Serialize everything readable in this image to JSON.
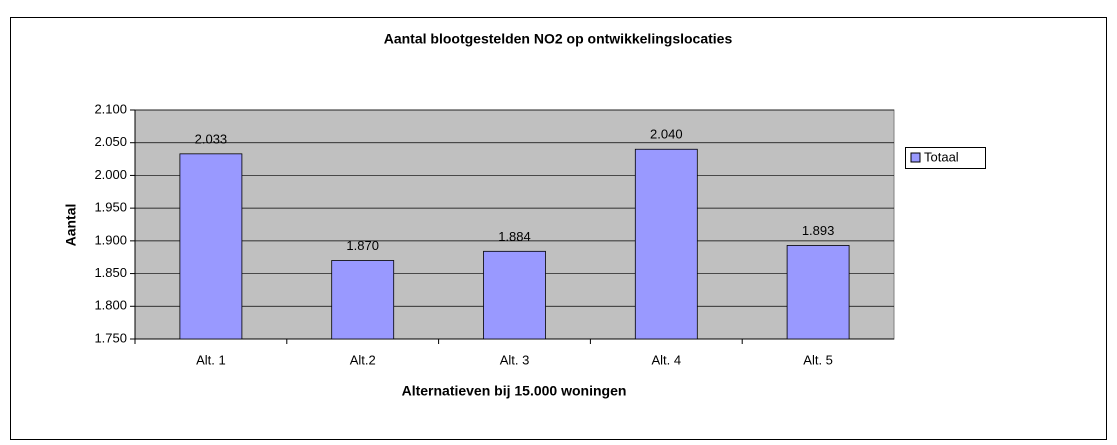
{
  "chart_data": {
    "type": "bar",
    "title": "Aantal blootgestelden NO2 op ontwikkelingslocaties",
    "x_label": "Alternatieven bij 15.000 woningen",
    "y_label": "Aantal",
    "categories": [
      "Alt. 1",
      "Alt.2",
      "Alt. 3",
      "Alt. 4",
      "Alt. 5"
    ],
    "series": [
      {
        "name": "Totaal",
        "color": "#9999ff",
        "values": [
          2033,
          1870,
          1884,
          2040,
          1893
        ],
        "value_labels": [
          "2.033",
          "1.870",
          "1.884",
          "2.040",
          "1.893"
        ]
      }
    ],
    "ylim": [
      1750,
      2100
    ],
    "yticks": [
      {
        "value": 1750,
        "label": "1.750"
      },
      {
        "value": 1800,
        "label": "1.800"
      },
      {
        "value": 1850,
        "label": "1.850"
      },
      {
        "value": 1900,
        "label": "1.900"
      },
      {
        "value": 1950,
        "label": "1.950"
      },
      {
        "value": 2000,
        "label": "2.000"
      },
      {
        "value": 2050,
        "label": "2.050"
      },
      {
        "value": 2100,
        "label": "2.100"
      }
    ],
    "grid": true,
    "legend": "right"
  }
}
